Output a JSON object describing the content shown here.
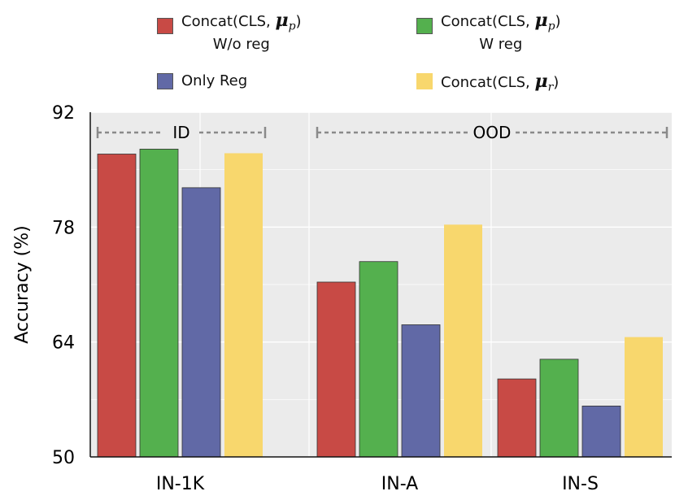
{
  "chart_data": {
    "type": "bar",
    "categories": [
      "IN-1K",
      "IN-A",
      "IN-S"
    ],
    "series": [
      {
        "name": "Concat(CLS, μ_p) W/o reg",
        "legend_main": "Concat(CLS, ",
        "legend_symbol": "μ",
        "legend_sub": "p",
        "legend_close": ")",
        "legend_line2": "W/o reg",
        "color": "#c84a45",
        "values": [
          86.9,
          71.3,
          59.5
        ]
      },
      {
        "name": "Concat(CLS, μ_p) W reg",
        "legend_main": "Concat(CLS, ",
        "legend_symbol": "μ",
        "legend_sub": "p",
        "legend_close": ")",
        "legend_line2": "W reg",
        "color": "#54b04e",
        "values": [
          87.5,
          73.8,
          61.9
        ]
      },
      {
        "name": "Only Reg",
        "legend_main": "Only Reg",
        "legend_symbol": "",
        "legend_sub": "",
        "legend_close": "",
        "legend_line2": "",
        "color": "#6169a6",
        "values": [
          82.8,
          66.1,
          56.2
        ]
      },
      {
        "name": "Concat(CLS, μ_r)",
        "legend_main": "Concat(CLS, ",
        "legend_symbol": "μ",
        "legend_sub": "r",
        "legend_close": ")",
        "legend_line2": "",
        "color": "#f8d76d",
        "values": [
          87.0,
          78.3,
          64.6
        ]
      }
    ],
    "ylabel": "Accuracy (%)",
    "ylim": [
      50,
      92
    ],
    "yticks": [
      "50",
      "64",
      "78",
      "92"
    ],
    "regions": [
      {
        "label": "ID",
        "categories": [
          "IN-1K"
        ]
      },
      {
        "label": "OOD",
        "categories": [
          "IN-A",
          "IN-S"
        ]
      }
    ],
    "grid": true,
    "legend_position": "top"
  }
}
